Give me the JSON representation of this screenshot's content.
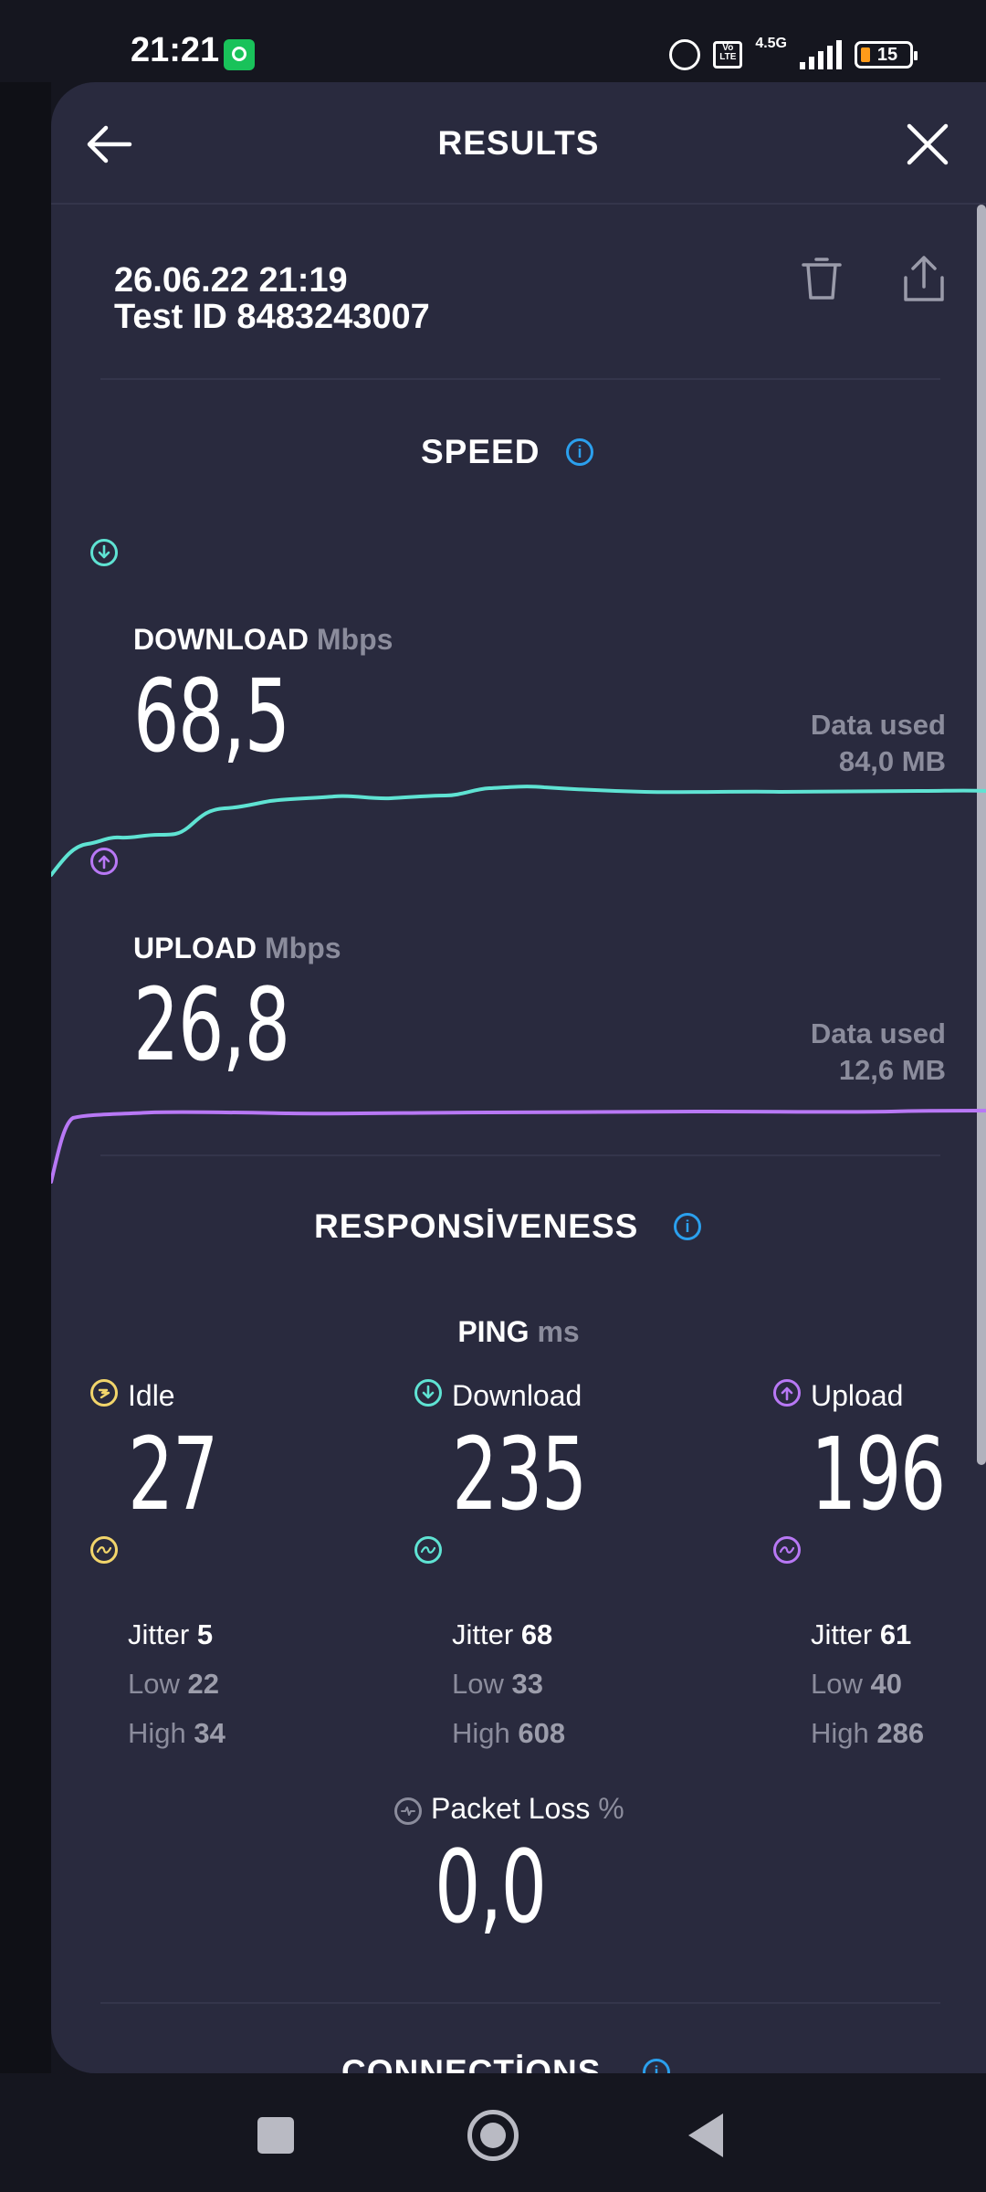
{
  "status_bar": {
    "time": "21:21",
    "network_label": "4.5G",
    "volte_label": "Vo LTE",
    "battery_level": "15"
  },
  "header": {
    "title": "RESULTS"
  },
  "test": {
    "date": "26.06.22 21:19",
    "test_id": "Test ID 8483243007"
  },
  "speed": {
    "title": "SPEED",
    "download": {
      "label": "DOWNLOAD",
      "unit": "Mbps",
      "value": "68,5",
      "data_used_label": "Data used",
      "data_used_value": "84,0 MB",
      "color": "#5fe3d3"
    },
    "upload": {
      "label": "UPLOAD",
      "unit": "Mbps",
      "value": "26,8",
      "data_used_label": "Data used",
      "data_used_value": "12,6 MB",
      "color": "#b878f5"
    }
  },
  "responsiveness": {
    "title": "RESPONSİVENESS",
    "ping_title": "PING",
    "ping_unit": "ms",
    "idle": {
      "label": "Idle",
      "value": "27",
      "jitter_label": "Jitter",
      "jitter_value": "5",
      "low_label": "Low",
      "low_value": "22",
      "high_label": "High",
      "high_value": "34",
      "color": "#f2d56b"
    },
    "download": {
      "label": "Download",
      "value": "235",
      "jitter_label": "Jitter",
      "jitter_value": "68",
      "low_label": "Low",
      "low_value": "33",
      "high_label": "High",
      "high_value": "608",
      "color": "#5fe3d3"
    },
    "upload": {
      "label": "Upload",
      "value": "196",
      "jitter_label": "Jitter",
      "jitter_value": "61",
      "low_label": "Low",
      "low_value": "40",
      "high_label": "High",
      "high_value": "286",
      "color": "#b878f5"
    },
    "packet_loss": {
      "label": "Packet Loss",
      "unit": "%",
      "value": "0,0"
    }
  },
  "connections": {
    "title": "CONNECTİONS"
  },
  "colors": {
    "panel_bg": "#292a3e",
    "info_accent": "#2ba0ee"
  }
}
